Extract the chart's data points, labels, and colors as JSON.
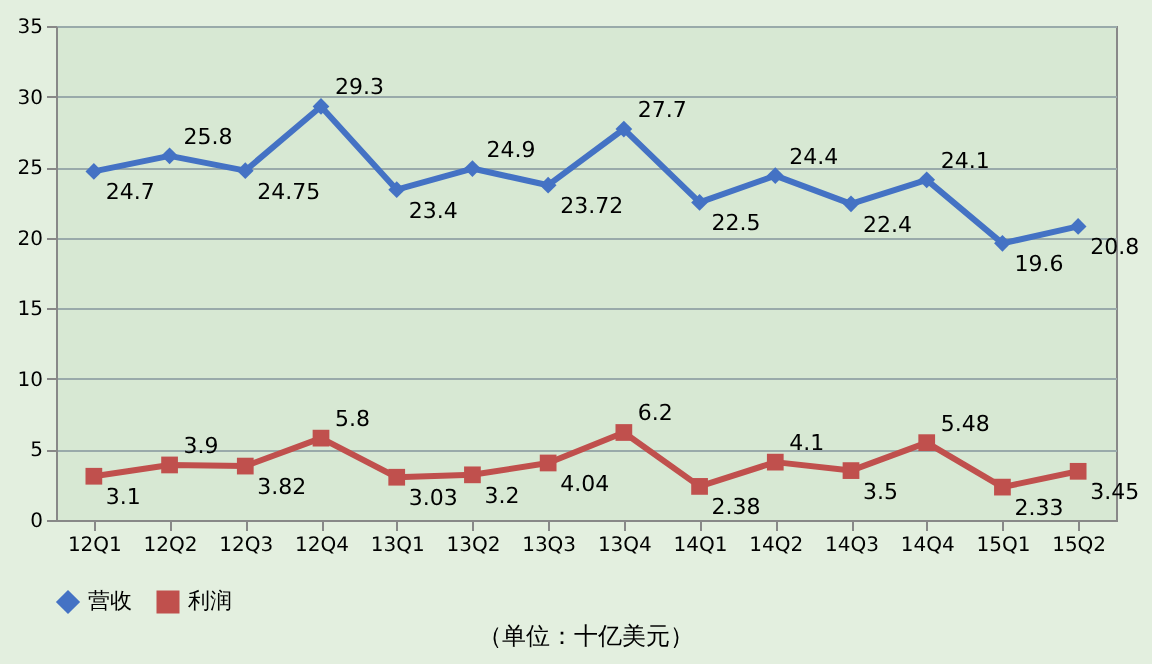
{
  "chart_data": {
    "type": "line",
    "categories": [
      "12Q1",
      "12Q2",
      "12Q3",
      "12Q4",
      "13Q1",
      "13Q2",
      "13Q3",
      "13Q4",
      "14Q1",
      "14Q2",
      "14Q3",
      "14Q4",
      "15Q1",
      "15Q2"
    ],
    "series": [
      {
        "name": "营收",
        "color": "#4472c4",
        "marker": "diamond",
        "values": [
          24.7,
          25.8,
          24.75,
          29.3,
          23.4,
          24.9,
          23.72,
          27.7,
          22.5,
          24.4,
          22.4,
          24.1,
          19.6,
          20.8
        ]
      },
      {
        "name": "利润",
        "color": "#c0504d",
        "marker": "square",
        "values": [
          3.1,
          3.9,
          3.82,
          5.8,
          3.03,
          3.2,
          4.04,
          6.2,
          2.38,
          4.1,
          3.5,
          5.48,
          2.33,
          3.45
        ]
      }
    ],
    "ylim": [
      0,
      35
    ],
    "yticks": [
      0,
      5,
      10,
      15,
      20,
      25,
      30,
      35
    ],
    "grid": "y",
    "legend": "bottom",
    "data_labels": true,
    "line_style": "solid",
    "annotations": [
      "（单位：十亿美元）"
    ]
  }
}
